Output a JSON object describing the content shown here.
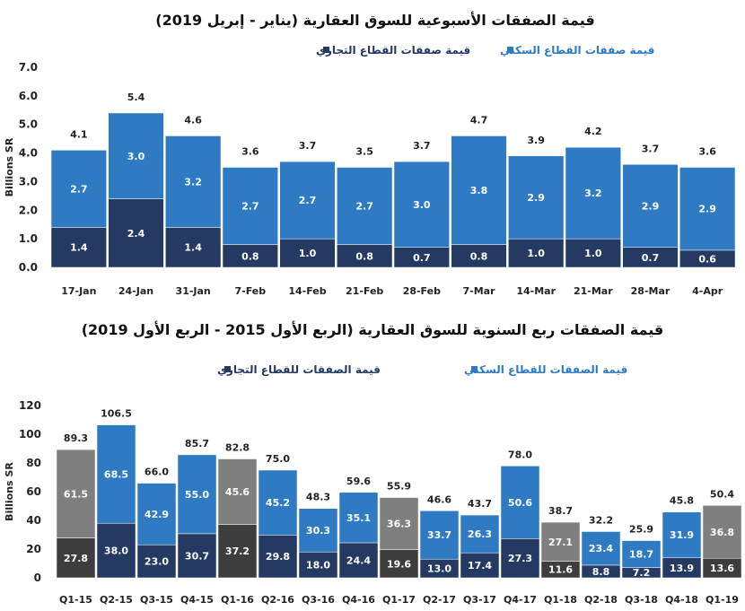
{
  "chart_data": [
    {
      "type": "bar",
      "stacked": true,
      "title": "قيمة الصفقات الأسبوعية للسوق العقارية (يناير - إبريل 2019)",
      "ylabel": "Billions SR",
      "ylim": [
        0,
        7
      ],
      "yticks": [
        "0.0",
        "1.0",
        "2.0",
        "3.0",
        "4.0",
        "5.0",
        "6.0",
        "7.0"
      ],
      "legend": [
        "قيمة صفقات القطاع السكني",
        "قيمة صفقات القطاع التجاري"
      ],
      "categories": [
        "17-Jan",
        "24-Jan",
        "31-Jan",
        "7-Feb",
        "14-Feb",
        "21-Feb",
        "28-Feb",
        "7-Mar",
        "14-Mar",
        "21-Mar",
        "28-Mar",
        "4-Apr"
      ],
      "series": [
        {
          "name": "قيمة صفقات القطاع التجاري",
          "values": [
            1.4,
            2.4,
            1.4,
            0.8,
            1.0,
            0.8,
            0.7,
            0.8,
            1.0,
            1.0,
            0.7,
            0.6
          ],
          "labels": [
            "1.4",
            "2.4",
            "1.4",
            "0.8",
            "1.0",
            "0.8",
            "0.7",
            "0.8",
            "1.0",
            "1.0",
            "0.7",
            "0.6"
          ]
        },
        {
          "name": "قيمة صفقات القطاع السكني",
          "values": [
            2.7,
            3.0,
            3.2,
            2.7,
            2.7,
            2.7,
            3.0,
            3.8,
            2.9,
            3.2,
            2.9,
            2.9
          ],
          "labels": [
            "2.7",
            "3.0",
            "3.2",
            "2.7",
            "2.7",
            "2.7",
            "3.0",
            "3.8",
            "2.9",
            "3.2",
            "2.9",
            "2.9"
          ]
        }
      ],
      "totals": [
        "4.1",
        "5.4",
        "4.6",
        "3.6",
        "3.7",
        "3.5",
        "3.7",
        "4.7",
        "3.9",
        "4.2",
        "3.7",
        "3.6"
      ],
      "colors": {
        "top": "#2e7bc4",
        "bottom": "#243a63"
      }
    },
    {
      "type": "bar",
      "stacked": true,
      "title": "قيمة الصفقات ربع السنوية للسوق العقارية (الربع الأول 2015 - الربع الأول 2019)",
      "ylabel": "Billions SR",
      "ylim": [
        0,
        120
      ],
      "yticks": [
        "0",
        "20",
        "40",
        "60",
        "80",
        "100",
        "120"
      ],
      "legend": [
        "قيمة الصفقات للقطاع السكني",
        "قيمة الصفقات للقطاع التجاري"
      ],
      "categories": [
        "Q1-15",
        "Q2-15",
        "Q3-15",
        "Q4-15",
        "Q1-16",
        "Q2-16",
        "Q3-16",
        "Q4-16",
        "Q1-17",
        "Q2-17",
        "Q3-17",
        "Q4-17",
        "Q1-18",
        "Q2-18",
        "Q3-18",
        "Q4-18",
        "Q1-19"
      ],
      "series": [
        {
          "name": "قيمة الصفقات للقطاع التجاري",
          "values": [
            27.8,
            38.0,
            23.0,
            30.7,
            37.2,
            29.8,
            18.0,
            24.4,
            19.6,
            13.0,
            17.4,
            27.3,
            11.6,
            8.8,
            7.2,
            13.9,
            13.6
          ],
          "labels": [
            "27.8",
            "38.0",
            "23.0",
            "30.7",
            "37.2",
            "29.8",
            "18.0",
            "24.4",
            "19.6",
            "13.0",
            "17.4",
            "27.3",
            "11.6",
            "8.8",
            "7.2",
            "13.9",
            "13.6"
          ]
        },
        {
          "name": "قيمة الصفقات للقطاع السكني",
          "values": [
            61.5,
            68.5,
            42.9,
            55.0,
            45.6,
            45.2,
            30.3,
            35.1,
            36.3,
            33.7,
            26.3,
            50.6,
            27.1,
            23.4,
            18.7,
            31.9,
            36.8
          ],
          "labels": [
            "61.5",
            "68.5",
            "42.9",
            "55.0",
            "45.6",
            "45.2",
            "30.3",
            "35.1",
            "36.3",
            "33.7",
            "26.3",
            "50.6",
            "27.1",
            "23.4",
            "18.7",
            "31.9",
            "36.8"
          ]
        }
      ],
      "totals": [
        "89.3",
        "106.5",
        "66.0",
        "85.7",
        "82.8",
        "75.0",
        "48.3",
        "59.6",
        "55.9",
        "46.6",
        "43.7",
        "78.0",
        "38.7",
        "32.2",
        "25.9",
        "45.8",
        "50.4"
      ],
      "gray_bars": [
        "Q1-15",
        "Q1-16",
        "Q1-17",
        "Q1-18",
        "Q1-19"
      ],
      "colors": {
        "top": "#2e7bc4",
        "bottom": "#243a63",
        "gray_top": "#7f7f7f",
        "gray_bottom": "#3d3d3d"
      }
    }
  ]
}
